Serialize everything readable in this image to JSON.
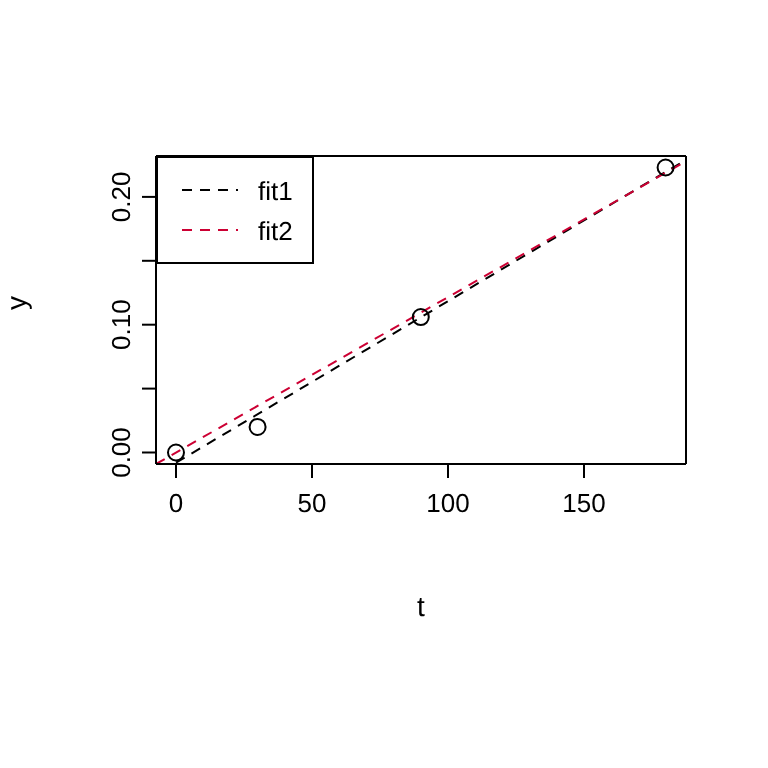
{
  "chart_data": {
    "type": "scatter",
    "xlabel": "t",
    "ylabel": "y",
    "xlim": [
      -7.35,
      187.5
    ],
    "ylim": [
      -0.009,
      0.232
    ],
    "xticks": [
      0,
      50,
      100,
      150
    ],
    "yticks": [
      {
        "value": 0,
        "label": "0.00"
      },
      {
        "value": 0.05,
        "label": null
      },
      {
        "value": 0.1,
        "label": "0.10"
      },
      {
        "value": 0.15,
        "label": null
      },
      {
        "value": 0.2,
        "label": "0.20"
      }
    ],
    "grid": false,
    "legend": "top left",
    "marker": "circle",
    "series": [
      {
        "color": "#000000",
        "x": [
          0,
          30,
          90,
          180
        ],
        "values": [
          0,
          0.02,
          0.106,
          0.223
        ]
      },
      {
        "type": "line",
        "name": "fit1",
        "color": "#000000",
        "line_style": "dashed",
        "marker": "none",
        "x": [
          0,
          187.5
        ],
        "values": [
          -0.008,
          0.229
        ]
      },
      {
        "type": "line",
        "name": "fit2",
        "color": "#cc0033",
        "line_style": "dashed",
        "marker": "none",
        "x": [
          -7.35,
          187.5
        ],
        "values": [
          -0.009,
          0.228
        ]
      }
    ]
  }
}
